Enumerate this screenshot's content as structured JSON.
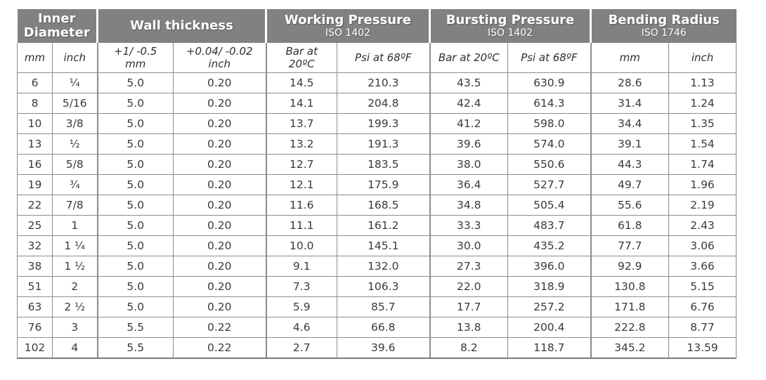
{
  "colors": {
    "header_background": "#818181",
    "header_text": "#ffffff",
    "border": "#8c8c8c",
    "body_text": "#3a3a3a",
    "page_background": "#ffffff"
  },
  "table": {
    "groups": [
      {
        "title": "Inner Diameter",
        "subtitle": ""
      },
      {
        "title": "Wall thickness",
        "subtitle": ""
      },
      {
        "title": "Working Pressure",
        "subtitle": "ISO 1402"
      },
      {
        "title": "Bursting Pressure",
        "subtitle": "ISO 1402"
      },
      {
        "title": "Bending Radius",
        "subtitle": "ISO 1746"
      }
    ],
    "columns": [
      {
        "line1": "mm",
        "line2": ""
      },
      {
        "line1": "inch",
        "line2": ""
      },
      {
        "line1": "+1/ -0.5",
        "line2": "mm"
      },
      {
        "line1": "+0.04/ -0.02",
        "line2": "inch"
      },
      {
        "line1": "Bar at",
        "line2": "20ºC"
      },
      {
        "line1": "Psi at 68ºF",
        "line2": ""
      },
      {
        "line1": "Bar at 20ºC",
        "line2": ""
      },
      {
        "line1": "Psi at 68ºF",
        "line2": ""
      },
      {
        "line1": "mm",
        "line2": ""
      },
      {
        "line1": "inch",
        "line2": ""
      }
    ],
    "rows": [
      [
        "6",
        "¼",
        "5.0",
        "0.20",
        "14.5",
        "210.3",
        "43.5",
        "630.9",
        "28.6",
        "1.13"
      ],
      [
        "8",
        "5/16",
        "5.0",
        "0.20",
        "14.1",
        "204.8",
        "42.4",
        "614.3",
        "31.4",
        "1.24"
      ],
      [
        "10",
        "3/8",
        "5.0",
        "0.20",
        "13.7",
        "199.3",
        "41.2",
        "598.0",
        "34.4",
        "1.35"
      ],
      [
        "13",
        "½",
        "5.0",
        "0.20",
        "13.2",
        "191.3",
        "39.6",
        "574.0",
        "39.1",
        "1.54"
      ],
      [
        "16",
        "5/8",
        "5.0",
        "0.20",
        "12.7",
        "183.5",
        "38.0",
        "550.6",
        "44.3",
        "1.74"
      ],
      [
        "19",
        "¾",
        "5.0",
        "0.20",
        "12.1",
        "175.9",
        "36.4",
        "527.7",
        "49.7",
        "1.96"
      ],
      [
        "22",
        "7/8",
        "5.0",
        "0.20",
        "11.6",
        "168.5",
        "34.8",
        "505.4",
        "55.6",
        "2.19"
      ],
      [
        "25",
        "1",
        "5.0",
        "0.20",
        "11.1",
        "161.2",
        "33.3",
        "483.7",
        "61.8",
        "2.43"
      ],
      [
        "32",
        "1 ¼",
        "5.0",
        "0.20",
        "10.0",
        "145.1",
        "30.0",
        "435.2",
        "77.7",
        "3.06"
      ],
      [
        "38",
        "1 ½",
        "5.0",
        "0.20",
        "9.1",
        "132.0",
        "27.3",
        "396.0",
        "92.9",
        "3.66"
      ],
      [
        "51",
        "2",
        "5.0",
        "0.20",
        "7.3",
        "106.3",
        "22.0",
        "318.9",
        "130.8",
        "5.15"
      ],
      [
        "63",
        "2 ½",
        "5.0",
        "0.20",
        "5.9",
        "85.7",
        "17.7",
        "257.2",
        "171.8",
        "6.76"
      ],
      [
        "76",
        "3",
        "5.5",
        "0.22",
        "4.6",
        "66.8",
        "13.8",
        "200.4",
        "222.8",
        "8.77"
      ],
      [
        "102",
        "4",
        "5.5",
        "0.22",
        "2.7",
        "39.6",
        "8.2",
        "118.7",
        "345.2",
        "13.59"
      ]
    ]
  }
}
